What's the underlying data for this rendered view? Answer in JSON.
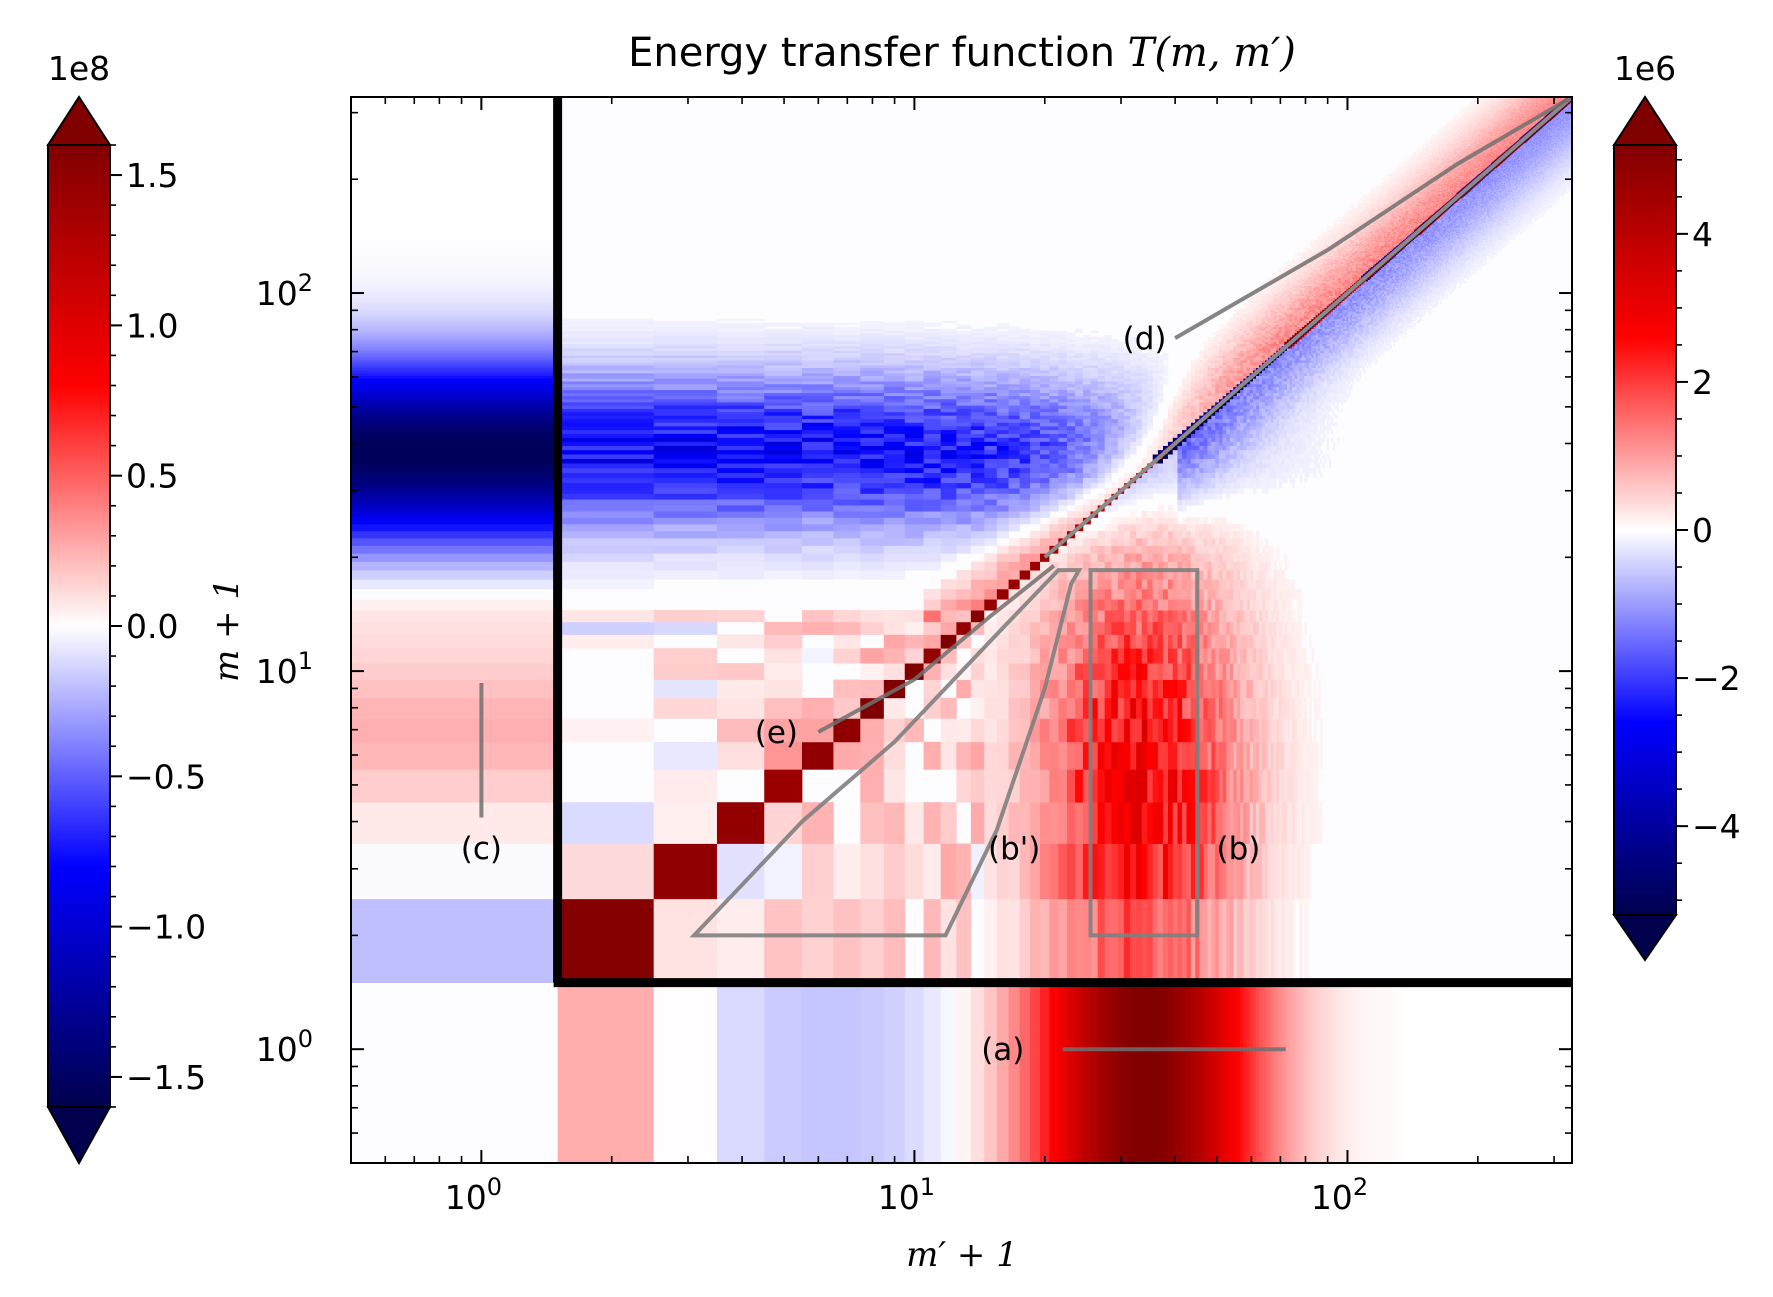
{
  "chart_data": {
    "type": "heatmap",
    "title_prefix": "Energy transfer function ",
    "title_math": "T(m, m′)",
    "xlabel": "m′ + 1",
    "ylabel": "m + 1",
    "xscale": "log",
    "yscale": "log",
    "xlim": [
      0.5,
      330
    ],
    "ylim": [
      0.5,
      330
    ],
    "x_ticks": [
      {
        "value": 1,
        "base": "10",
        "exp": "0"
      },
      {
        "value": 10,
        "base": "10",
        "exp": "1"
      },
      {
        "value": 100,
        "base": "10",
        "exp": "2"
      }
    ],
    "y_ticks": [
      {
        "value": 1,
        "base": "10",
        "exp": "0"
      },
      {
        "value": 10,
        "base": "10",
        "exp": "1"
      },
      {
        "value": 100,
        "base": "10",
        "exp": "2"
      }
    ],
    "colormap": "seismic",
    "colors": {
      "negative": "#00004d",
      "blue": "#0000ff",
      "zero": "#ffffff",
      "red": "#ff0000",
      "positive": "#800000"
    },
    "left_colorbar": {
      "multiplier": "1e8",
      "range": [
        -1.6,
        1.6
      ],
      "ticks": [
        "−1.5",
        "−1.0",
        "−0.5",
        "0.0",
        "0.5",
        "1.0",
        "1.5"
      ],
      "tick_values": [
        -1.5,
        -1.0,
        -0.5,
        0.0,
        0.5,
        1.0,
        1.5
      ],
      "extend": "both"
    },
    "right_colorbar": {
      "multiplier": "1e6",
      "range": [
        -5.2,
        5.2
      ],
      "ticks": [
        "−4",
        "−2",
        "0",
        "2",
        "4"
      ],
      "tick_values": [
        -4,
        -2,
        0,
        2,
        4
      ],
      "extend": "both"
    },
    "separator_lines": {
      "x": 1.5,
      "y": 1.5
    },
    "annotations": [
      {
        "label": "(a)",
        "text_at": [
          16,
          1.0
        ],
        "segment": [
          [
            22,
            1.0
          ],
          [
            72,
            1.0
          ]
        ]
      },
      {
        "label": "(b)",
        "text_at": [
          56,
          3.4
        ],
        "polygon": [
          [
            25.5,
            2.0
          ],
          [
            25.5,
            18.5
          ],
          [
            45,
            18.5
          ],
          [
            45,
            2.0
          ]
        ]
      },
      {
        "label": "(b')",
        "text_at": [
          17,
          3.4
        ],
        "polygon": [
          [
            3.1,
            2.0
          ],
          [
            11.8,
            2.0
          ],
          [
            15.5,
            3.8
          ],
          [
            20,
            9
          ],
          [
            23,
            17
          ],
          [
            24,
            18.5
          ],
          [
            21.5,
            18.5
          ],
          [
            16,
            13
          ],
          [
            9,
            6.5
          ],
          [
            5.5,
            4.0
          ]
        ]
      },
      {
        "label": "(c)",
        "text_at": [
          1.0,
          3.4
        ],
        "segment": [
          [
            1.0,
            4.1
          ],
          [
            1.0,
            9.3
          ]
        ]
      },
      {
        "label": "(d)",
        "text_at": [
          34,
          76
        ],
        "segment": [
          [
            40,
            76
          ],
          [
            90,
            130
          ],
          [
            180,
            220
          ],
          [
            330,
            330
          ]
        ]
      },
      {
        "label": "(e)",
        "text_at": [
          4.8,
          6.9
        ],
        "segment": [
          [
            6.0,
            6.9
          ],
          [
            10,
            9.5
          ],
          [
            15,
            14
          ],
          [
            21,
            19
          ]
        ]
      }
    ],
    "diagonal_line": [
      [
        20,
        20
      ],
      [
        330,
        330
      ]
    ]
  }
}
